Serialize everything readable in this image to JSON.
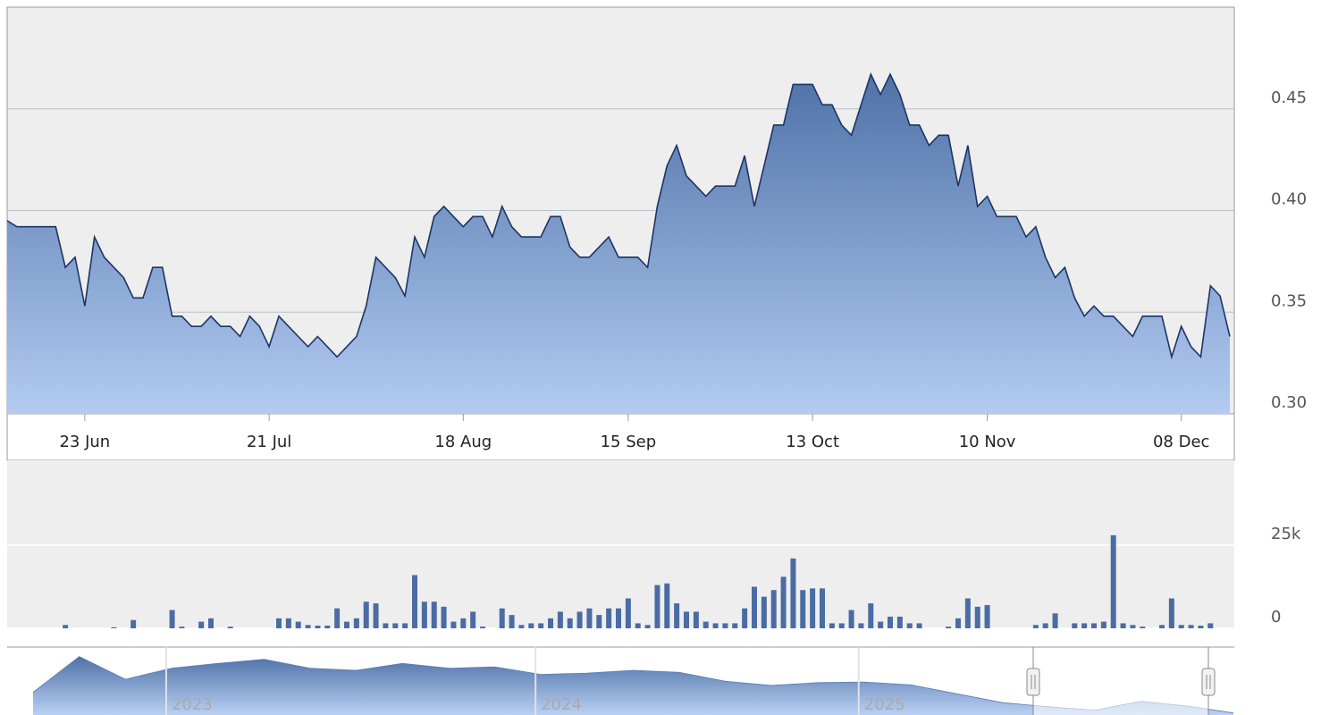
{
  "chart_data": [
    {
      "type": "area",
      "categories": [
        null,
        null,
        null,
        null,
        null,
        null,
        null,
        null,
        "23 Jun",
        null,
        null,
        null,
        null,
        null,
        null,
        null,
        null,
        null,
        null,
        null,
        null,
        null,
        null,
        null,
        null,
        null,
        null,
        "21 Jul",
        null,
        null,
        null,
        null,
        null,
        null,
        null,
        null,
        null,
        null,
        null,
        null,
        null,
        null,
        null,
        null,
        null,
        null,
        null,
        "18 Aug",
        null,
        null,
        null,
        null,
        null,
        null,
        null,
        null,
        null,
        null,
        null,
        null,
        null,
        null,
        null,
        null,
        "15 Sep",
        null,
        null,
        null,
        null,
        null,
        null,
        null,
        null,
        null,
        null,
        null,
        null,
        null,
        null,
        null,
        null,
        null,
        null,
        "13 Oct",
        null,
        null,
        null,
        null,
        null,
        null,
        null,
        null,
        null,
        null,
        null,
        null,
        null,
        null,
        null,
        null,
        null,
        "10 Nov",
        null,
        null,
        null,
        null,
        null,
        null,
        null,
        null,
        null,
        null,
        null,
        null,
        null,
        null,
        null,
        null,
        null,
        null,
        null,
        "08 Dec",
        null,
        null,
        null,
        null,
        null
      ],
      "values": [
        0.395,
        0.392,
        0.392,
        0.392,
        0.392,
        0.392,
        0.372,
        0.377,
        0.353,
        0.387,
        0.377,
        0.372,
        0.367,
        0.357,
        0.357,
        0.372,
        0.372,
        0.348,
        0.348,
        0.343,
        0.343,
        0.348,
        0.343,
        0.343,
        0.338,
        0.348,
        0.343,
        0.333,
        0.348,
        0.343,
        0.338,
        0.333,
        0.338,
        0.333,
        0.328,
        0.333,
        0.338,
        0.353,
        0.377,
        0.372,
        0.367,
        0.358,
        0.387,
        0.377,
        0.397,
        0.402,
        0.397,
        0.392,
        0.397,
        0.397,
        0.387,
        0.402,
        0.392,
        0.387,
        0.387,
        0.387,
        0.397,
        0.397,
        0.382,
        0.377,
        0.377,
        0.382,
        0.387,
        0.377,
        0.377,
        0.377,
        0.372,
        0.402,
        0.422,
        0.432,
        0.417,
        0.412,
        0.407,
        0.412,
        0.412,
        0.412,
        0.427,
        0.402,
        0.422,
        0.442,
        0.442,
        0.462,
        0.462,
        0.462,
        0.452,
        0.452,
        0.442,
        0.437,
        0.452,
        0.467,
        0.457,
        0.467,
        0.457,
        0.442,
        0.442,
        0.432,
        0.437,
        0.437,
        0.412,
        0.432,
        0.402,
        0.407,
        0.397,
        0.397,
        0.397,
        0.387,
        0.392,
        0.377,
        0.367,
        0.372,
        0.357,
        0.348,
        0.353,
        0.348,
        0.348,
        0.343,
        0.338,
        0.348,
        0.348,
        0.348,
        0.328,
        0.343,
        0.333,
        0.328,
        0.363,
        0.358,
        0.338
      ],
      "color": "#1c3564",
      "ylim": [
        0.3,
        0.5
      ],
      "yticks": [
        {
          "value": 0.3,
          "label": "0.30"
        },
        0.35,
        {
          "value": 0.4,
          "label": "0.40"
        },
        0.45
      ],
      "grid": true
    },
    {
      "type": "bar",
      "values": [
        0,
        0,
        0,
        0,
        0,
        0,
        1000,
        0,
        0,
        0,
        0,
        300,
        0,
        2500,
        0,
        0,
        0,
        5500,
        500,
        0,
        2000,
        3000,
        0,
        500,
        0,
        0,
        0,
        0,
        3000,
        3000,
        2000,
        1000,
        800,
        800,
        6000,
        2000,
        3000,
        8000,
        7500,
        1500,
        1500,
        1500,
        16000,
        8000,
        8000,
        6500,
        2000,
        3000,
        5000,
        500,
        0,
        6000,
        4000,
        1000,
        1500,
        1500,
        3000,
        5000,
        3000,
        5000,
        6000,
        4000,
        6000,
        6000,
        9000,
        1500,
        1000,
        13000,
        13500,
        7500,
        5000,
        5000,
        2000,
        1500,
        1500,
        1500,
        6000,
        12500,
        9500,
        11500,
        15500,
        21000,
        11500,
        12000,
        12000,
        1500,
        1500,
        5500,
        1500,
        7500,
        2000,
        3500,
        3500,
        1500,
        1500,
        0,
        0,
        500,
        3000,
        9000,
        6500,
        7000,
        0,
        0,
        0,
        0,
        1000,
        1500,
        4500,
        0,
        1500,
        1500,
        1500,
        2000,
        28000,
        1500,
        1000,
        500,
        0,
        1000,
        9000,
        1000,
        1000,
        800,
        1500,
        0,
        0
      ],
      "color": "#4b6ca3",
      "ylim": [
        0,
        50000
      ],
      "yticks": [
        0,
        {
          "value": 25000,
          "label": "25k"
        }
      ],
      "grid": true
    },
    {
      "type": "area",
      "categories": [
        null,
        null,
        null,
        "2023",
        null,
        null,
        null,
        null,
        null,
        null,
        null,
        "2024",
        null,
        null,
        null,
        null,
        null,
        null,
        "2025",
        null,
        null,
        null,
        null,
        null,
        null,
        null,
        null
      ],
      "values": [
        0.63,
        1.15,
        0.82,
        0.98,
        1.05,
        1.11,
        0.98,
        0.95,
        1.05,
        0.98,
        1.0,
        0.89,
        0.91,
        0.95,
        0.92,
        0.79,
        0.73,
        0.77,
        0.78,
        0.74,
        0.61,
        0.48,
        0.42,
        0.37,
        0.5,
        0.43,
        0.33
      ],
      "color": "#5a7db5",
      "ylim": [
        0.3,
        1.21
      ]
    }
  ]
}
